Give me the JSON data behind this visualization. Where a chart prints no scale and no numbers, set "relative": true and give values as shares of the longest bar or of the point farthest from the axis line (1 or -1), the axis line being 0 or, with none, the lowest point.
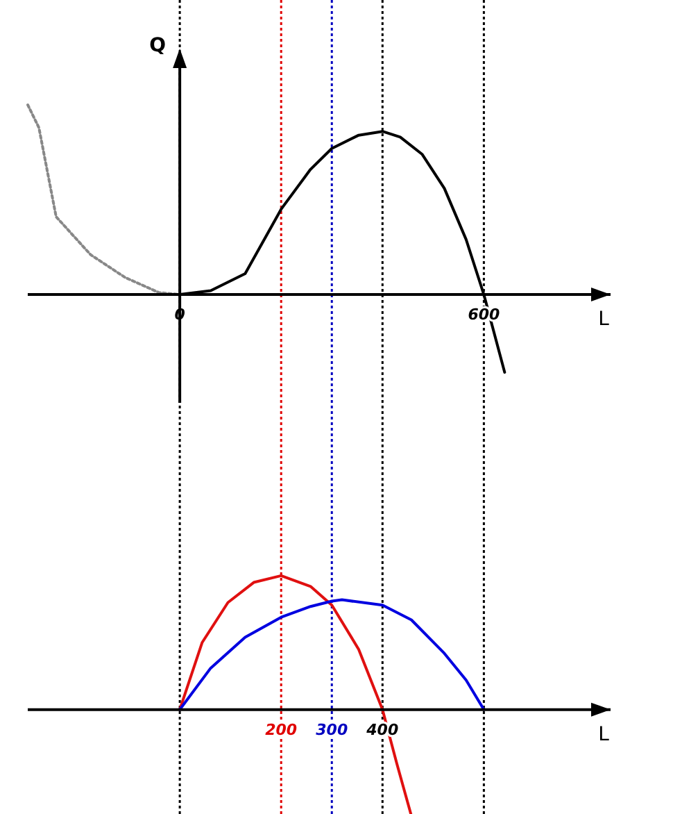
{
  "chart_data": [
    {
      "type": "line",
      "ylabel": "Q",
      "xlabel": "L",
      "relative": true,
      "xlim": [
        -300,
        850
      ],
      "xticks": [
        0,
        600
      ],
      "grid": false,
      "marker": "none",
      "series": [
        {
          "color": "#000000",
          "x": [
            0,
            61,
            129,
            200,
            258,
            300,
            353,
            400,
            435,
            478,
            522,
            565,
            600,
            641
          ],
          "values": [
            0,
            0.02,
            0.11,
            0.45,
            0.66,
            0.77,
            0.84,
            0.86,
            0.83,
            0.74,
            0.56,
            0.29,
            0,
            -0.41
          ]
        },
        {
          "color": "#888888",
          "line_style": "dotted",
          "x": [
            -300,
            -278,
            -244,
            -176,
            -108,
            -41,
            0
          ],
          "values": [
            1,
            0.88,
            0.41,
            0.21,
            0.09,
            0.01,
            0
          ]
        }
      ],
      "ref_lines": [
        {
          "axis": "x",
          "value": 200,
          "color": "#e00000",
          "line_style": "dotted"
        },
        {
          "axis": "x",
          "value": 300,
          "color": "#0000c0",
          "line_style": "dotted"
        },
        {
          "axis": "x",
          "value": 400,
          "color": "#000000",
          "line_style": "dotted"
        },
        {
          "axis": "x",
          "value": 600,
          "color": "#000000",
          "line_style": "dotted"
        }
      ]
    },
    {
      "type": "line",
      "xlabel": "L",
      "relative": true,
      "xlim": [
        -300,
        850
      ],
      "xticks": [
        200,
        300,
        400
      ],
      "grid": false,
      "marker": "none",
      "series": [
        {
          "color": "#e01010",
          "x": [
            0,
            44,
            95,
            146,
            200,
            258,
            300,
            353,
            400,
            428,
            456
          ],
          "values": [
            0,
            0.5,
            0.8,
            0.95,
            1,
            0.92,
            0.78,
            0.45,
            0,
            -0.4,
            -0.78
          ]
        },
        {
          "color": "#0000e0",
          "x": [
            0,
            61,
            129,
            200,
            258,
            300,
            320,
            400,
            457,
            522,
            565,
            600
          ],
          "values": [
            0,
            0.31,
            0.54,
            0.69,
            0.77,
            0.81,
            0.82,
            0.78,
            0.67,
            0.42,
            0.22,
            0
          ]
        }
      ],
      "ref_lines": [
        {
          "axis": "x",
          "value": 0,
          "color": "#000000",
          "line_style": "dotted"
        }
      ]
    }
  ]
}
